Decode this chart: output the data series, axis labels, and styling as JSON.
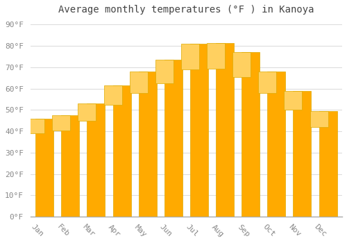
{
  "title": "Average monthly temperatures (°F ) in Kanoya",
  "months": [
    "Jan",
    "Feb",
    "Mar",
    "Apr",
    "May",
    "Jun",
    "Jul",
    "Aug",
    "Sep",
    "Oct",
    "Nov",
    "Dec"
  ],
  "values": [
    46,
    47.5,
    53,
    61.5,
    68,
    73.5,
    81,
    81.5,
    77,
    68,
    59,
    49.5
  ],
  "bar_color_bottom": "#FFAA00",
  "bar_color_top": "#FFD060",
  "bar_edge_color": "#DDAA00",
  "background_color": "#FFFFFF",
  "plot_bg_color": "#FFFFFF",
  "grid_color": "#DDDDDD",
  "ylim": [
    0,
    93
  ],
  "yticks": [
    0,
    10,
    20,
    30,
    40,
    50,
    60,
    70,
    80,
    90
  ],
  "title_fontsize": 10,
  "tick_fontsize": 8,
  "title_color": "#444444",
  "tick_color": "#888888",
  "spine_color": "#AAAAAA",
  "xlabel_rotation": -45,
  "bar_width": 0.7
}
